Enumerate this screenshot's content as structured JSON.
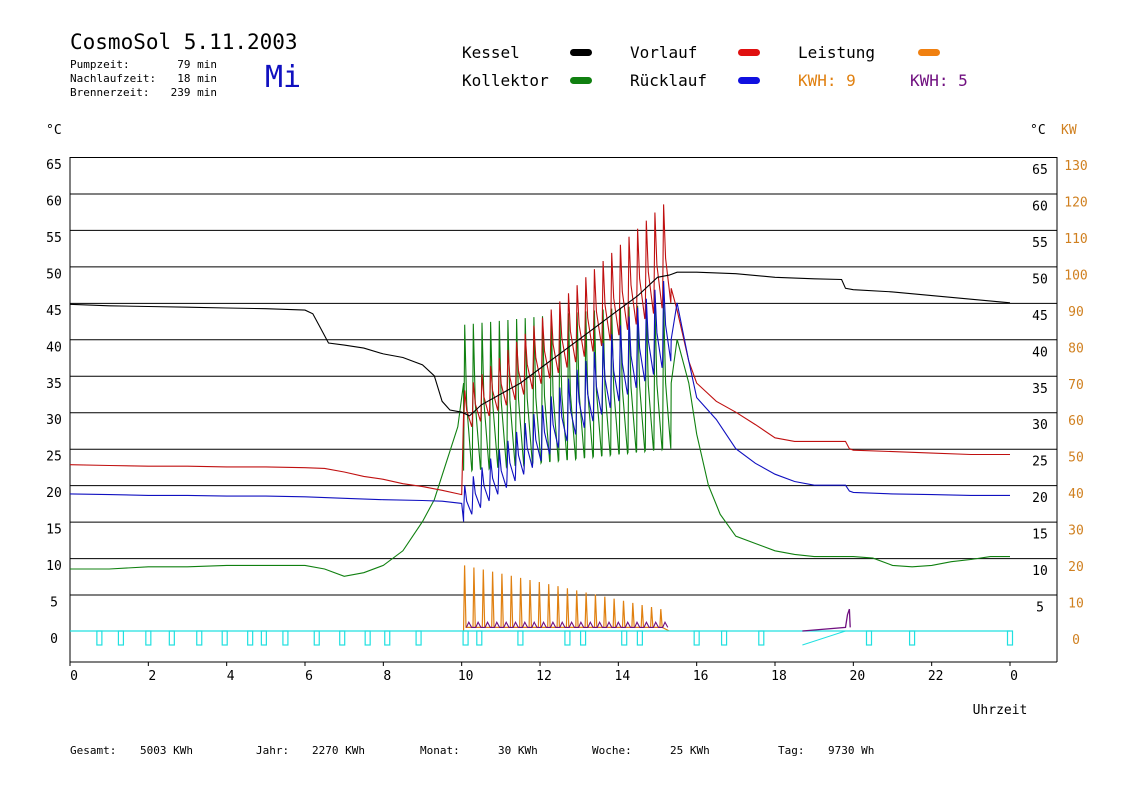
{
  "header": {
    "title": "CosmoSol 5.11.2003",
    "day": "Mi",
    "stats": [
      {
        "label": "Pumpzeit:",
        "value": "79 min"
      },
      {
        "label": "Nachlaufzeit:",
        "value": "18 min"
      },
      {
        "label": "Brennerzeit:",
        "value": "239 min"
      }
    ]
  },
  "legend": {
    "kessel": "Kessel",
    "kollektor": "Kollektor",
    "vorlauf": "Vorlauf",
    "ruecklauf": "Rücklauf",
    "leistung": "Leistung",
    "kwh1": "KWH: 9",
    "kwh2": "KWH: 5"
  },
  "colors": {
    "kessel": "#000000",
    "kollektor": "#108010",
    "vorlauf": "#c01010",
    "ruecklauf": "#1010c0",
    "leistung": "#e08010",
    "kwh2": "#701080",
    "pump": "#20e0e0",
    "grid": "#000000"
  },
  "footer": {
    "gesamt_label": "Gesamt:",
    "gesamt_value": "5003 KWh",
    "jahr_label": "Jahr:",
    "jahr_value": "2270 KWh",
    "monat_label": "Monat:",
    "monat_value": "30 KWh",
    "woche_label": "Woche:",
    "woche_value": "25 KWh",
    "tag_label": "Tag:",
    "tag_value": "9730 Wh"
  },
  "chart_data": {
    "type": "line",
    "xlabel": "Uhrzeit",
    "ylabel_left": "°C",
    "ylabel_right_temp": "°C",
    "ylabel_right_power": "KW",
    "xlim": [
      0,
      24
    ],
    "ylim": [
      0,
      65
    ],
    "x_ticks": [
      "0",
      "2",
      "4",
      "6",
      "8",
      "10",
      "12",
      "14",
      "16",
      "18",
      "20",
      "22",
      "0"
    ],
    "y_ticks_left": [
      "0",
      "5",
      "10",
      "15",
      "20",
      "25",
      "30",
      "35",
      "40",
      "45",
      "50",
      "55",
      "60",
      "65"
    ],
    "y_ticks_right_temp": [
      "5",
      "10",
      "15",
      "20",
      "25",
      "30",
      "35",
      "40",
      "45",
      "50",
      "55",
      "60",
      "65"
    ],
    "y_ticks_right_power": [
      "0",
      "10",
      "20",
      "30",
      "40",
      "50",
      "60",
      "70",
      "80",
      "90",
      "100",
      "110",
      "120",
      "130"
    ],
    "grid": "horizontal",
    "series": [
      {
        "name": "Kessel",
        "x": [
          0,
          1,
          2,
          3,
          4,
          5,
          6,
          6.2,
          6.4,
          6.6,
          7,
          7.5,
          8,
          8.5,
          9,
          9.3,
          9.5,
          9.7,
          10,
          10.2,
          10.5,
          11,
          11.5,
          12,
          12.5,
          13,
          13.5,
          14,
          14.5,
          15,
          15.3,
          15.5,
          16,
          17,
          18,
          19,
          19.7,
          19.8,
          20,
          21,
          22,
          23,
          24
        ],
        "y": [
          44.8,
          44.6,
          44.5,
          44.4,
          44.3,
          44.2,
          44.0,
          43.5,
          41.5,
          39.5,
          39.2,
          38.8,
          38,
          37.5,
          36.5,
          35,
          31.5,
          30.3,
          30,
          29.5,
          31,
          32.5,
          34,
          36,
          38,
          40,
          42,
          44,
          46,
          48.5,
          48.8,
          49.2,
          49.2,
          49,
          48.5,
          48.3,
          48.2,
          47,
          46.8,
          46.5,
          46,
          45.5,
          45
        ]
      },
      {
        "name": "Kollektor",
        "x": [
          0,
          1,
          2,
          3,
          4,
          5,
          6,
          6.5,
          7,
          7.5,
          8,
          8.5,
          9,
          9.3,
          9.6,
          9.9,
          10.05,
          15.35,
          15.5,
          15.8,
          16,
          16.3,
          16.6,
          17,
          17.5,
          18,
          18.5,
          19,
          19.5,
          20,
          20.5,
          21,
          21.5,
          22,
          22.5,
          23,
          23.5,
          24
        ],
        "y": [
          8.5,
          8.5,
          8.8,
          8.8,
          9.0,
          9.0,
          9.0,
          8.5,
          7.5,
          8.0,
          9.0,
          11,
          15,
          18,
          23,
          28,
          34,
          34,
          40,
          34,
          27,
          20,
          16,
          13,
          12,
          11,
          10.5,
          10.2,
          10.2,
          10.2,
          10,
          9,
          8.8,
          9,
          9.5,
          9.8,
          10.2,
          10.2
        ],
        "oscillation": {
          "from": 10.05,
          "to": 15.35,
          "count": 24,
          "low_start": 22,
          "low_end": 25,
          "high_start": 42,
          "high_end": 45
        }
      },
      {
        "name": "Vorlauf",
        "x": [
          0,
          1,
          2,
          3,
          4,
          5,
          6,
          6.5,
          7,
          7.5,
          8,
          8.5,
          9,
          9.5,
          10,
          10.05,
          15.35,
          15.5,
          15.8,
          16,
          16.5,
          17,
          17.5,
          18,
          18.5,
          19,
          19.5,
          19.8,
          19.9,
          20,
          21,
          22,
          23,
          24
        ],
        "y": [
          22.8,
          22.7,
          22.6,
          22.6,
          22.5,
          22.5,
          22.4,
          22.3,
          21.8,
          21.2,
          20.8,
          20.2,
          19.8,
          19.3,
          18.7,
          30,
          47,
          44,
          37,
          34,
          31.5,
          30,
          28.3,
          26.5,
          26,
          26,
          26,
          26,
          25,
          24.8,
          24.6,
          24.4,
          24.2,
          24.2
        ],
        "oscillation": {
          "from": 10.05,
          "to": 15.35,
          "count": 24,
          "low_start": 28,
          "low_end": 45,
          "high_start": 33,
          "high_end": 58.5
        }
      },
      {
        "name": "Rücklauf",
        "x": [
          0,
          1,
          2,
          3,
          4,
          5,
          6,
          7,
          8,
          9,
          9.5,
          10,
          10.05,
          15.35,
          15.5,
          15.8,
          16,
          16.5,
          17,
          17.5,
          18,
          18.5,
          19,
          19.5,
          19.8,
          19.9,
          20,
          21,
          22,
          23,
          24
        ],
        "y": [
          18.8,
          18.7,
          18.6,
          18.6,
          18.5,
          18.5,
          18.4,
          18.2,
          18.0,
          17.9,
          17.8,
          17.5,
          15,
          40,
          45,
          37,
          32,
          29,
          25,
          23,
          21.5,
          20.5,
          20,
          20,
          20,
          19.2,
          19,
          18.8,
          18.7,
          18.6,
          18.6
        ],
        "oscillation": {
          "from": 10.05,
          "to": 15.35,
          "count": 24,
          "low_start": 16,
          "low_end": 37,
          "high_start": 20,
          "high_end": 48
        }
      },
      {
        "name": "Leistung",
        "axis": "power",
        "pulses": {
          "from": 10.05,
          "to": 15.3,
          "count": 22,
          "base": 1,
          "high_start": 18,
          "high_end": 6
        }
      },
      {
        "name": "Pumpe",
        "axis": "state",
        "on_times": [
          0.75,
          1.3,
          2.0,
          2.6,
          3.3,
          3.95,
          4.6,
          4.95,
          5.5,
          6.3,
          6.95,
          7.6,
          8.1,
          8.9,
          10.1,
          10.45,
          11.5,
          12.7,
          13.1,
          14.15,
          14.55,
          16.0,
          16.7,
          17.65,
          20.4,
          21.5,
          24.0
        ]
      },
      {
        "name": "KWH 5",
        "axis": "power",
        "x": [
          18.7,
          19.8,
          19.85,
          19.9,
          19.92
        ],
        "y": [
          0.0,
          1.0,
          4.5,
          6.0,
          1.0
        ]
      }
    ]
  }
}
